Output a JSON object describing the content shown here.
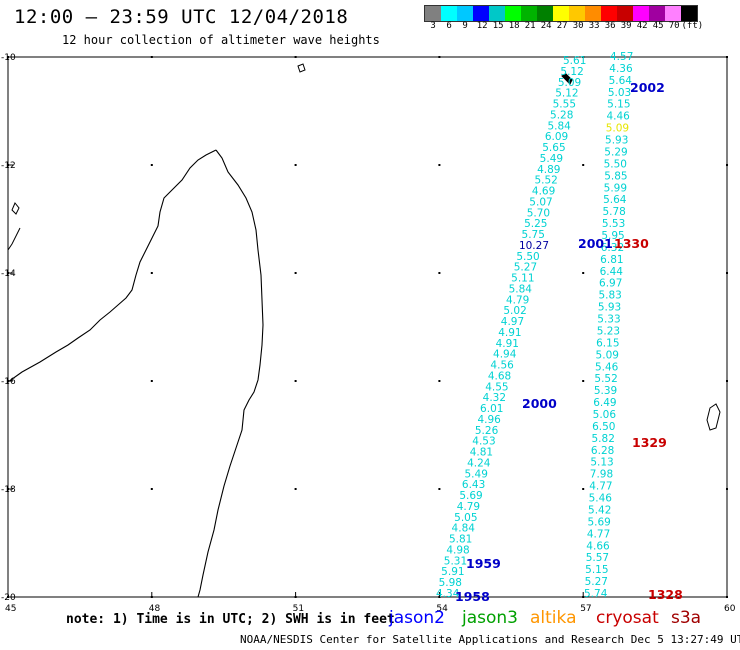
{
  "header": {
    "title": "12:00 – 23:59 UTC 12/04/2018",
    "subtitle": "12 hour collection of altimeter wave heights"
  },
  "colorbar": {
    "colors": [
      "#808080",
      "#00ffff",
      "#00c8ff",
      "#0000ff",
      "#00c8c8",
      "#00ff00",
      "#00b400",
      "#008000",
      "#ffff00",
      "#ffc800",
      "#ff8c00",
      "#ff0000",
      "#c80000",
      "#ff00ff",
      "#a000a0",
      "#ff80ff",
      "#000000"
    ],
    "labels": [
      "3",
      "6",
      "9",
      "12",
      "15",
      "18",
      "21",
      "24",
      "27",
      "30",
      "33",
      "36",
      "39",
      "42",
      "45",
      "70",
      "(ft)"
    ]
  },
  "axes": {
    "lon_labels": [
      "45",
      "48",
      "51",
      "54",
      "57",
      "60"
    ],
    "lat_labels": [
      "-10",
      "-12",
      "-14",
      "-16",
      "-18",
      "-20"
    ]
  },
  "tracks": {
    "west_values": [
      "5.61",
      "5.12",
      "5.09",
      "5.12",
      "5.55",
      "5.28",
      "5.84",
      "6.09",
      "5.65",
      "5.49",
      "4.89",
      "5.52",
      "4.69",
      "5.07",
      "5.70",
      "5.25",
      "5.75",
      "10.27",
      "5.50",
      "5.27",
      "5.11",
      "5.84",
      "4.79",
      "5.02",
      "4.97",
      "4.91",
      "4.91",
      "4.94",
      "4.56",
      "4.68",
      "4.55",
      "4.32",
      "6.01",
      "4.96",
      "5.26",
      "4.53",
      "4.81",
      "4.24",
      "5.49",
      "6.43",
      "5.69",
      "4.79",
      "5.05",
      "4.84",
      "5.81",
      "4.98",
      "5.31",
      "5.91",
      "5.98",
      "4.34"
    ],
    "east_values": [
      "4.57",
      "4.36",
      "5.64",
      "5.03",
      "5.15",
      "4.46",
      "5.09",
      "5.93",
      "5.29",
      "5.50",
      "5.85",
      "5.99",
      "5.64",
      "5.78",
      "5.53",
      "5.95",
      "6.32",
      "6.81",
      "6.44",
      "6.97",
      "5.83",
      "5.93",
      "5.33",
      "5.23",
      "6.15",
      "5.09",
      "5.46",
      "5.52",
      "5.39",
      "6.49",
      "5.06",
      "6.50",
      "5.82",
      "6.28",
      "5.13",
      "7.98",
      "4.77",
      "5.46",
      "5.42",
      "5.69",
      "4.77",
      "4.66",
      "5.57",
      "5.15",
      "5.27",
      "5.74"
    ],
    "time_labels": [
      {
        "text": "2002",
        "color": "#0000c8"
      },
      {
        "text": "2001",
        "color": "#0000c8"
      },
      {
        "text": "1330",
        "color": "#c80000"
      },
      {
        "text": "2000",
        "color": "#0000c8"
      },
      {
        "text": "1329",
        "color": "#c80000"
      },
      {
        "text": "1959",
        "color": "#0000c8"
      },
      {
        "text": "1958",
        "color": "#0000c8"
      },
      {
        "text": "1328",
        "color": "#c80000"
      }
    ],
    "value_color": "#00d2d2",
    "highlight_value": {
      "text": "5.09",
      "color": "#e6e600"
    },
    "dark_value": {
      "text": "10.27",
      "color": "#0000a0"
    }
  },
  "footer": {
    "note": "note: 1) Time is in UTC; 2) SWH is in feet",
    "credit": "NOAA/NESDIS Center for Satellite Applications and Research   Dec  5 13:27:49 UTC 2018",
    "legend": [
      {
        "text": "jason2",
        "color": "#0000ff"
      },
      {
        "text": "jason3",
        "color": "#00a000"
      },
      {
        "text": "altika",
        "color": "#ff9600"
      },
      {
        "text": "cryosat",
        "color": "#c80000"
      },
      {
        "text": "s3a",
        "color": "#a00000"
      }
    ]
  }
}
